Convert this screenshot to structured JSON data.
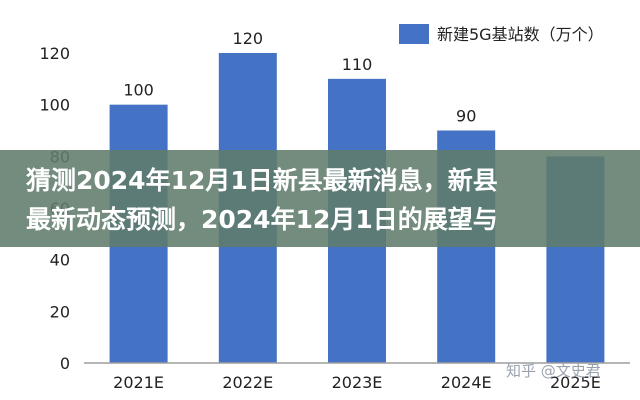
{
  "chart_data": {
    "type": "bar",
    "categories": [
      "2021E",
      "2022E",
      "2023E",
      "2024E",
      "2025E"
    ],
    "series": [
      {
        "name": "新建5G基站数（万个）",
        "values": [
          100,
          120,
          110,
          90,
          80
        ]
      }
    ],
    "data_labels": [
      "100",
      "120",
      "110",
      "90",
      ""
    ],
    "ylim": [
      0,
      120
    ],
    "yticks": [
      "0",
      "20",
      "40",
      "60",
      "80",
      "100",
      "120"
    ],
    "grid": false,
    "legend": "top-right",
    "bar_color": "#4472c4"
  },
  "overlay": {
    "line1": "猜测2024年12月1日新县最新消息，新县",
    "line2": "最新动态预测，2024年12月1日的展望与",
    "background": "#607c6c"
  },
  "watermark": "知乎 @文史君"
}
